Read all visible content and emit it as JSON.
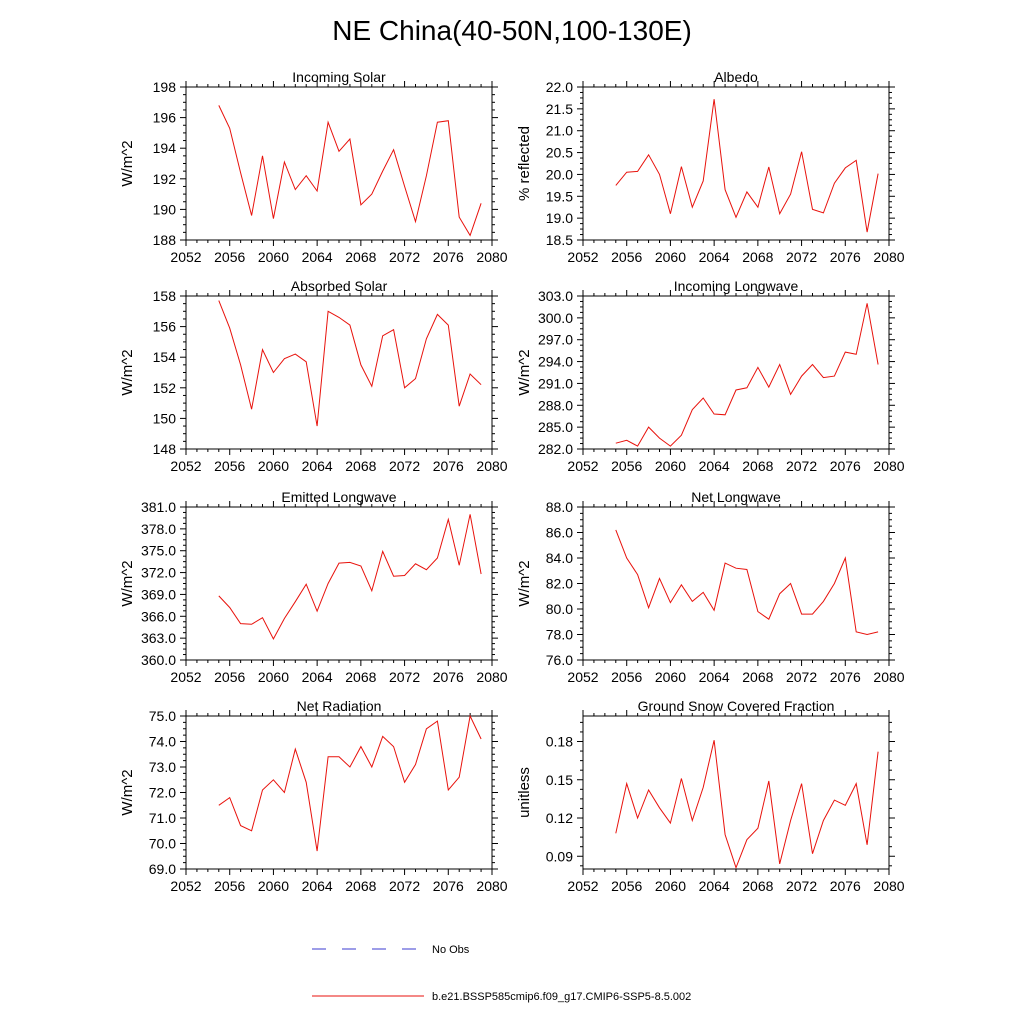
{
  "figure": {
    "title": "NE China(40-50N,100-130E)"
  },
  "legend": [
    {
      "label": "No Obs",
      "color": "#3b3bd1",
      "style": "dashed"
    },
    {
      "label": "b.e21.BSSP585cmip6.f09_g17.CMIP6-SSP5-8.5.002",
      "color": "#e8120c",
      "style": "solid"
    }
  ],
  "chart_data": [
    {
      "type": "line",
      "title": "Incoming Solar",
      "ylabel": "W/m^2",
      "xlim": [
        2052,
        2080
      ],
      "ylim": [
        188,
        198
      ],
      "xticks": [
        "2052",
        "2056",
        "2060",
        "2064",
        "2068",
        "2072",
        "2076",
        "2080"
      ],
      "yticks": [
        "188",
        "190",
        "192",
        "194",
        "196",
        "198"
      ],
      "x": [
        2055,
        2056,
        2057,
        2058,
        2059,
        2060,
        2061,
        2062,
        2063,
        2064,
        2065,
        2066,
        2067,
        2068,
        2069,
        2070,
        2071,
        2072,
        2073,
        2074,
        2075,
        2076,
        2077,
        2078,
        2079
      ],
      "values": [
        196.8,
        195.3,
        192.4,
        189.6,
        193.5,
        189.4,
        193.1,
        191.3,
        192.2,
        191.2,
        195.7,
        193.8,
        194.6,
        190.3,
        191.0,
        192.5,
        193.9,
        191.5,
        189.2,
        192.2,
        195.7,
        195.8,
        189.5,
        188.3,
        190.4
      ]
    },
    {
      "type": "line",
      "title": "Albedo",
      "ylabel": "% reflected",
      "xlim": [
        2052,
        2080
      ],
      "ylim": [
        18.5,
        22.0
      ],
      "xticks": [
        "2052",
        "2056",
        "2060",
        "2064",
        "2068",
        "2072",
        "2076",
        "2080"
      ],
      "yticks": [
        "18.5",
        "19.0",
        "19.5",
        "20.0",
        "20.5",
        "21.0",
        "21.5",
        "22.0"
      ],
      "x": [
        2055,
        2056,
        2057,
        2058,
        2059,
        2060,
        2061,
        2062,
        2063,
        2064,
        2065,
        2066,
        2067,
        2068,
        2069,
        2070,
        2071,
        2072,
        2073,
        2074,
        2075,
        2076,
        2077,
        2078,
        2079
      ],
      "values": [
        19.75,
        20.05,
        20.07,
        20.45,
        20.0,
        19.1,
        20.18,
        19.25,
        19.85,
        21.72,
        19.65,
        19.02,
        19.6,
        19.25,
        20.17,
        19.1,
        19.55,
        20.52,
        19.2,
        19.12,
        19.8,
        20.15,
        20.32,
        18.68,
        20.02
      ]
    },
    {
      "type": "line",
      "title": "Absorbed Solar",
      "ylabel": "W/m^2",
      "xlim": [
        2052,
        2080
      ],
      "ylim": [
        148,
        158
      ],
      "xticks": [
        "2052",
        "2056",
        "2060",
        "2064",
        "2068",
        "2072",
        "2076",
        "2080"
      ],
      "yticks": [
        "148",
        "150",
        "152",
        "154",
        "156",
        "158"
      ],
      "x": [
        2055,
        2056,
        2057,
        2058,
        2059,
        2060,
        2061,
        2062,
        2063,
        2064,
        2065,
        2066,
        2067,
        2068,
        2069,
        2070,
        2071,
        2072,
        2073,
        2074,
        2075,
        2076,
        2077,
        2078,
        2079
      ],
      "values": [
        157.7,
        155.9,
        153.5,
        150.6,
        154.5,
        153.0,
        153.9,
        154.2,
        153.7,
        149.5,
        157.0,
        156.6,
        156.1,
        153.5,
        152.1,
        155.4,
        155.8,
        152.0,
        152.6,
        155.2,
        156.8,
        156.1,
        150.8,
        152.9,
        152.2
      ]
    },
    {
      "type": "line",
      "title": "Incoming Longwave",
      "ylabel": "W/m^2",
      "xlim": [
        2052,
        2080
      ],
      "ylim": [
        282.0,
        303.0
      ],
      "xticks": [
        "2052",
        "2056",
        "2060",
        "2064",
        "2068",
        "2072",
        "2076",
        "2080"
      ],
      "yticks": [
        "282.0",
        "285.0",
        "288.0",
        "291.0",
        "294.0",
        "297.0",
        "300.0",
        "303.0"
      ],
      "x": [
        2055,
        2056,
        2057,
        2058,
        2059,
        2060,
        2061,
        2062,
        2063,
        2064,
        2065,
        2066,
        2067,
        2068,
        2069,
        2070,
        2071,
        2072,
        2073,
        2074,
        2075,
        2076,
        2077,
        2078,
        2079
      ],
      "values": [
        282.8,
        283.2,
        282.4,
        285.0,
        283.5,
        282.4,
        283.9,
        287.4,
        289.0,
        286.8,
        286.7,
        290.1,
        290.4,
        293.2,
        290.5,
        293.6,
        289.5,
        292.0,
        293.6,
        291.8,
        292.0,
        295.3,
        295.0,
        302.0,
        293.6
      ]
    },
    {
      "type": "line",
      "title": "Emitted Longwave",
      "ylabel": "W/m^2",
      "xlim": [
        2052,
        2080
      ],
      "ylim": [
        360.0,
        381.0
      ],
      "xticks": [
        "2052",
        "2056",
        "2060",
        "2064",
        "2068",
        "2072",
        "2076",
        "2080"
      ],
      "yticks": [
        "360.0",
        "363.0",
        "366.0",
        "369.0",
        "372.0",
        "375.0",
        "378.0",
        "381.0"
      ],
      "x": [
        2055,
        2056,
        2057,
        2058,
        2059,
        2060,
        2061,
        2062,
        2063,
        2064,
        2065,
        2066,
        2067,
        2068,
        2069,
        2070,
        2071,
        2072,
        2073,
        2074,
        2075,
        2076,
        2077,
        2078,
        2079
      ],
      "values": [
        368.8,
        367.2,
        365.0,
        364.9,
        365.8,
        362.9,
        365.7,
        368.0,
        370.4,
        366.7,
        370.5,
        373.3,
        373.4,
        372.9,
        369.5,
        374.9,
        371.5,
        371.6,
        373.2,
        372.4,
        374.0,
        379.3,
        373.0,
        380.0,
        371.8
      ]
    },
    {
      "type": "line",
      "title": "Net Longwave",
      "ylabel": "W/m^2",
      "xlim": [
        2052,
        2080
      ],
      "ylim": [
        76.0,
        88.0
      ],
      "xticks": [
        "2052",
        "2056",
        "2060",
        "2064",
        "2068",
        "2072",
        "2076",
        "2080"
      ],
      "yticks": [
        "76.0",
        "78.0",
        "80.0",
        "82.0",
        "84.0",
        "86.0",
        "88.0"
      ],
      "x": [
        2055,
        2056,
        2057,
        2058,
        2059,
        2060,
        2061,
        2062,
        2063,
        2064,
        2065,
        2066,
        2067,
        2068,
        2069,
        2070,
        2071,
        2072,
        2073,
        2074,
        2075,
        2076,
        2077,
        2078,
        2079
      ],
      "values": [
        86.2,
        84.0,
        82.7,
        80.1,
        82.4,
        80.5,
        81.9,
        80.6,
        81.3,
        79.9,
        83.6,
        83.2,
        83.1,
        79.8,
        79.2,
        81.2,
        82.0,
        79.6,
        79.6,
        80.6,
        82.0,
        84.0,
        78.2,
        78.0,
        78.2
      ]
    },
    {
      "type": "line",
      "title": "Net Radiation",
      "ylabel": "W/m^2",
      "xlim": [
        2052,
        2080
      ],
      "ylim": [
        69.0,
        75.0
      ],
      "xticks": [
        "2052",
        "2056",
        "2060",
        "2064",
        "2068",
        "2072",
        "2076",
        "2080"
      ],
      "yticks": [
        "69.0",
        "70.0",
        "71.0",
        "72.0",
        "73.0",
        "74.0",
        "75.0"
      ],
      "x": [
        2055,
        2056,
        2057,
        2058,
        2059,
        2060,
        2061,
        2062,
        2063,
        2064,
        2065,
        2066,
        2067,
        2068,
        2069,
        2070,
        2071,
        2072,
        2073,
        2074,
        2075,
        2076,
        2077,
        2078,
        2079
      ],
      "values": [
        71.5,
        71.8,
        70.7,
        70.5,
        72.1,
        72.5,
        72.0,
        73.7,
        72.4,
        69.7,
        73.4,
        73.4,
        73.0,
        73.8,
        73.0,
        74.2,
        73.8,
        72.4,
        73.1,
        74.5,
        74.8,
        72.1,
        72.6,
        75.0,
        74.1
      ]
    },
    {
      "type": "line",
      "title": "Ground Snow Covered Fraction",
      "ylabel": "unitless",
      "xlim": [
        2052,
        2080
      ],
      "ylim": [
        0.08,
        0.2
      ],
      "xticks": [
        "2052",
        "2056",
        "2060",
        "2064",
        "2068",
        "2072",
        "2076",
        "2080"
      ],
      "yticks": [
        "0.09",
        "0.12",
        "0.15",
        "0.18"
      ],
      "yticks_values": [
        0.09,
        0.12,
        0.15,
        0.18
      ],
      "x": [
        2055,
        2056,
        2057,
        2058,
        2059,
        2060,
        2061,
        2062,
        2063,
        2064,
        2065,
        2066,
        2067,
        2068,
        2069,
        2070,
        2071,
        2072,
        2073,
        2074,
        2075,
        2076,
        2077,
        2078,
        2079
      ],
      "values": [
        0.108,
        0.147,
        0.12,
        0.142,
        0.128,
        0.116,
        0.151,
        0.118,
        0.144,
        0.181,
        0.107,
        0.081,
        0.103,
        0.112,
        0.149,
        0.084,
        0.118,
        0.147,
        0.092,
        0.118,
        0.134,
        0.13,
        0.147,
        0.099,
        0.172
      ]
    }
  ]
}
